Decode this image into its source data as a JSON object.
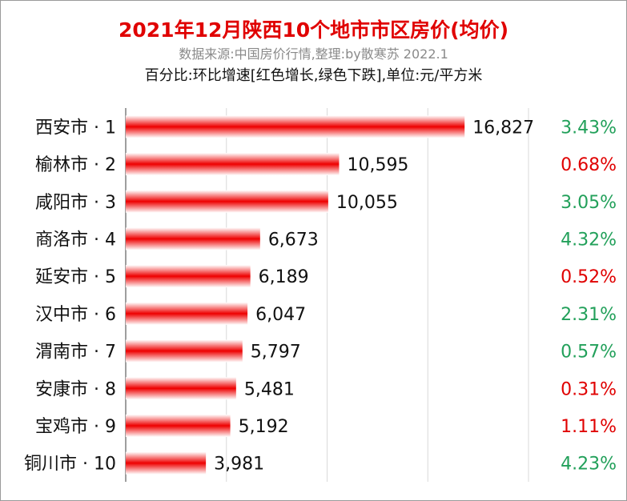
{
  "title": "2021年12月陕西10个地市市区房价(均价)",
  "subtitle": "数据来源:中国房价行情,整理:by散寒苏 2022.1",
  "note": "百分比:环比增速[红色增长,绿色下跌],单位:元/平方米",
  "colors": {
    "increase": "#e00000",
    "decrease": "#22a05a",
    "bar": "#ee0000",
    "title": "#e00000"
  },
  "chart_data": {
    "type": "bar",
    "orientation": "horizontal",
    "categories": [
      "西安市 · 1",
      "榆林市 · 2",
      "咸阳市 · 3",
      "商洛市 · 4",
      "延安市 · 5",
      "汉中市 · 6",
      "渭南市 · 7",
      "安康市 · 8",
      "宝鸡市 · 9",
      "铜川市 · 10"
    ],
    "values": [
      16827,
      10595,
      10055,
      6673,
      6189,
      6047,
      5797,
      5481,
      5192,
      3981
    ],
    "value_labels": [
      "16,827",
      "10,595",
      "10,055",
      "6,673",
      "6,189",
      "6,047",
      "5,797",
      "5,481",
      "5,192",
      "3,981"
    ],
    "change_labels": [
      "3.43%",
      "0.68%",
      "3.05%",
      "4.32%",
      "0.52%",
      "2.31%",
      "0.57%",
      "0.31%",
      "1.11%",
      "4.23%"
    ],
    "change_colors": [
      "#22a05a",
      "#e00000",
      "#22a05a",
      "#22a05a",
      "#e00000",
      "#22a05a",
      "#22a05a",
      "#e00000",
      "#e00000",
      "#22a05a"
    ],
    "xlim": [
      0,
      20000
    ],
    "grid": true
  }
}
